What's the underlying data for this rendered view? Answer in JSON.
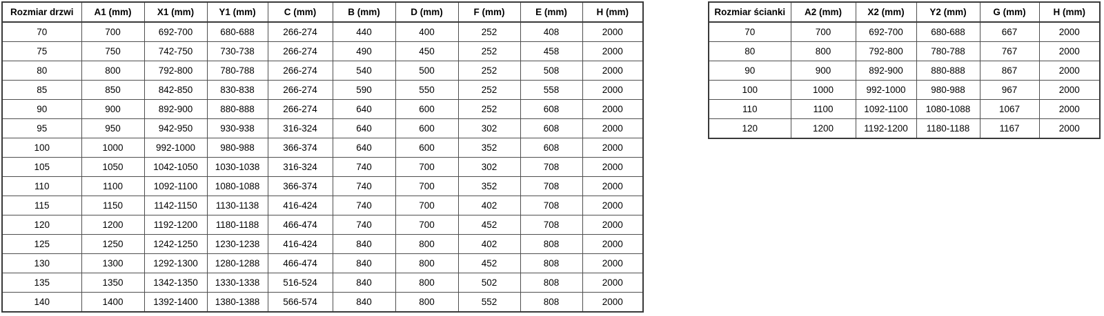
{
  "page": {
    "background_color": "#ffffff",
    "text_color": "#000000",
    "border_color": "#4d4d4d",
    "outer_border_color": "#383838"
  },
  "tables": {
    "doors": {
      "headers": [
        "Rozmiar drzwi",
        "A1 (mm)",
        "X1 (mm)",
        "Y1 (mm)",
        "C (mm)",
        "B (mm)",
        "D (mm)",
        "F (mm)",
        "E (mm)",
        "H (mm)"
      ],
      "rows": [
        [
          "70",
          "700",
          "692-700",
          "680-688",
          "266-274",
          "440",
          "400",
          "252",
          "408",
          "2000"
        ],
        [
          "75",
          "750",
          "742-750",
          "730-738",
          "266-274",
          "490",
          "450",
          "252",
          "458",
          "2000"
        ],
        [
          "80",
          "800",
          "792-800",
          "780-788",
          "266-274",
          "540",
          "500",
          "252",
          "508",
          "2000"
        ],
        [
          "85",
          "850",
          "842-850",
          "830-838",
          "266-274",
          "590",
          "550",
          "252",
          "558",
          "2000"
        ],
        [
          "90",
          "900",
          "892-900",
          "880-888",
          "266-274",
          "640",
          "600",
          "252",
          "608",
          "2000"
        ],
        [
          "95",
          "950",
          "942-950",
          "930-938",
          "316-324",
          "640",
          "600",
          "302",
          "608",
          "2000"
        ],
        [
          "100",
          "1000",
          "992-1000",
          "980-988",
          "366-374",
          "640",
          "600",
          "352",
          "608",
          "2000"
        ],
        [
          "105",
          "1050",
          "1042-1050",
          "1030-1038",
          "316-324",
          "740",
          "700",
          "302",
          "708",
          "2000"
        ],
        [
          "110",
          "1100",
          "1092-1100",
          "1080-1088",
          "366-374",
          "740",
          "700",
          "352",
          "708",
          "2000"
        ],
        [
          "115",
          "1150",
          "1142-1150",
          "1130-1138",
          "416-424",
          "740",
          "700",
          "402",
          "708",
          "2000"
        ],
        [
          "120",
          "1200",
          "1192-1200",
          "1180-1188",
          "466-474",
          "740",
          "700",
          "452",
          "708",
          "2000"
        ],
        [
          "125",
          "1250",
          "1242-1250",
          "1230-1238",
          "416-424",
          "840",
          "800",
          "402",
          "808",
          "2000"
        ],
        [
          "130",
          "1300",
          "1292-1300",
          "1280-1288",
          "466-474",
          "840",
          "800",
          "452",
          "808",
          "2000"
        ],
        [
          "135",
          "1350",
          "1342-1350",
          "1330-1338",
          "516-524",
          "840",
          "800",
          "502",
          "808",
          "2000"
        ],
        [
          "140",
          "1400",
          "1392-1400",
          "1380-1388",
          "566-574",
          "840",
          "800",
          "552",
          "808",
          "2000"
        ]
      ]
    },
    "walls": {
      "headers": [
        "Rozmiar ścianki",
        "A2 (mm)",
        "X2 (mm)",
        "Y2 (mm)",
        "G (mm)",
        "H (mm)"
      ],
      "rows": [
        [
          "70",
          "700",
          "692-700",
          "680-688",
          "667",
          "2000"
        ],
        [
          "80",
          "800",
          "792-800",
          "780-788",
          "767",
          "2000"
        ],
        [
          "90",
          "900",
          "892-900",
          "880-888",
          "867",
          "2000"
        ],
        [
          "100",
          "1000",
          "992-1000",
          "980-988",
          "967",
          "2000"
        ],
        [
          "110",
          "1100",
          "1092-1100",
          "1080-1088",
          "1067",
          "2000"
        ],
        [
          "120",
          "1200",
          "1192-1200",
          "1180-1188",
          "1167",
          "2000"
        ]
      ]
    }
  }
}
